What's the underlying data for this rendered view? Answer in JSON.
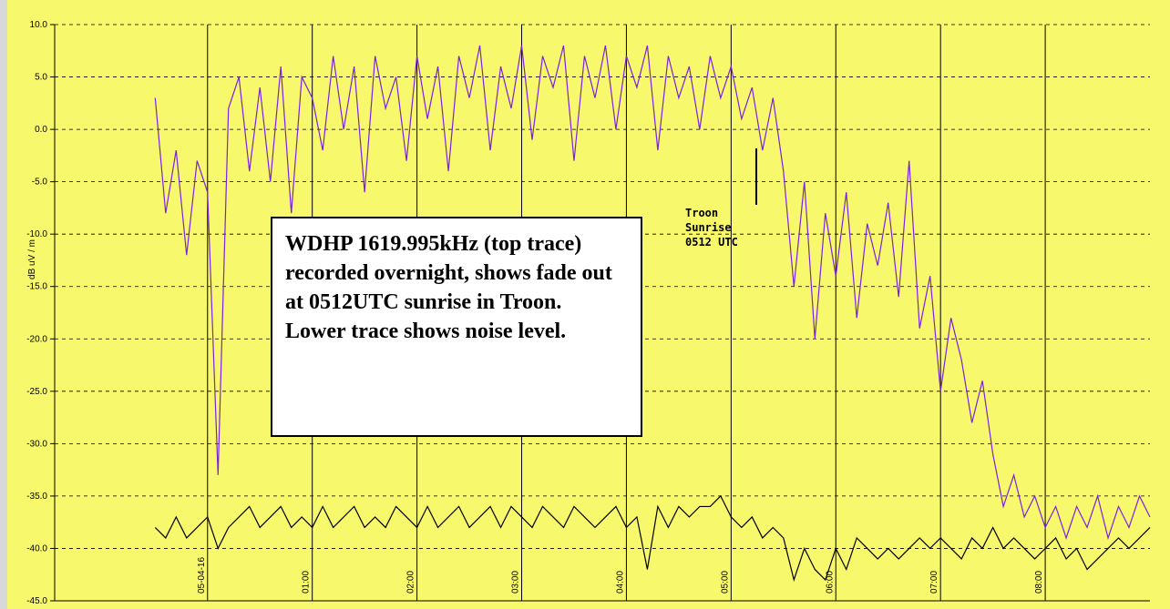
{
  "chart_data": {
    "type": "line",
    "ylabel": "dB uV / m",
    "annotations": [
      "WDHP 1619.995kHz (top trace) recorded overnight, shows fade out at 0512UTC sunrise in Troon. Lower trace shows noise level.",
      "Troon Sunrise 0512 UTC"
    ],
    "x": [
      -0.5,
      -0.4,
      -0.3,
      -0.2,
      -0.1,
      0,
      0.1,
      0.2,
      0.3,
      0.4,
      0.5,
      0.6,
      0.7,
      0.8,
      0.9,
      1.0,
      1.1,
      1.2,
      1.3,
      1.4,
      1.5,
      1.6,
      1.7,
      1.8,
      1.9,
      2.0,
      2.1,
      2.2,
      2.3,
      2.4,
      2.5,
      2.6,
      2.7,
      2.8,
      2.9,
      3.0,
      3.1,
      3.2,
      3.3,
      3.4,
      3.5,
      3.6,
      3.7,
      3.8,
      3.9,
      4.0,
      4.1,
      4.2,
      4.3,
      4.4,
      4.5,
      4.6,
      4.7,
      4.8,
      4.9,
      5.0,
      5.1,
      5.2,
      5.3,
      5.4,
      5.5,
      5.6,
      5.7,
      5.8,
      5.9,
      6.0,
      6.1,
      6.2,
      6.3,
      6.4,
      6.5,
      6.6,
      6.7,
      6.8,
      6.9,
      7.0,
      7.1,
      7.2,
      7.3,
      7.4,
      7.5,
      7.6,
      7.7,
      7.8,
      7.9,
      8.0,
      8.1,
      8.2,
      8.3,
      8.4,
      8.5,
      8.6,
      8.7,
      8.8,
      8.9,
      9.0
    ],
    "series": [
      {
        "color": "#7a22e0",
        "values": [
          3,
          -8,
          -2,
          -12,
          -3,
          -6,
          -33,
          2,
          5,
          -4,
          4,
          -5,
          6,
          -8,
          5,
          3,
          -2,
          7,
          0,
          6,
          -6,
          7,
          2,
          5,
          -3,
          7,
          1,
          6,
          -4,
          7,
          3,
          8,
          -2,
          6,
          2,
          8,
          -1,
          7,
          4,
          8,
          -3,
          7,
          3,
          8,
          0,
          7,
          4,
          8,
          -2,
          7,
          3,
          6,
          0,
          7,
          3,
          6,
          1,
          4,
          -2,
          3,
          -4,
          -15,
          -5,
          -20,
          -8,
          -14,
          -6,
          -18,
          -9,
          -13,
          -7,
          -16,
          -3,
          -19,
          -14,
          -25,
          -18,
          -22,
          -28,
          -24,
          -31,
          -36,
          -33,
          -37,
          -35,
          -38,
          -36,
          -39,
          -36,
          -38,
          -35,
          -39,
          -36,
          -38,
          -35,
          -37
        ]
      },
      {
        "color": "#000000",
        "values": [
          -38,
          -39,
          -37,
          -39,
          -38,
          -37,
          -40,
          -38,
          -37,
          -36,
          -38,
          -37,
          -36,
          -38,
          -37,
          -38,
          -36,
          -38,
          -37,
          -36,
          -38,
          -37,
          -38,
          -36,
          -37,
          -38,
          -36,
          -38,
          -37,
          -36,
          -38,
          -37,
          -36,
          -38,
          -36,
          -37,
          -38,
          -36,
          -37,
          -38,
          -36,
          -37,
          -38,
          -37,
          -36,
          -38,
          -37,
          -42,
          -36,
          -38,
          -36,
          -37,
          -36,
          -36,
          -35,
          -37,
          -38,
          -37,
          -39,
          -38,
          -39,
          -43,
          -40,
          -42,
          -43,
          -40,
          -42,
          -39,
          -40,
          -41,
          -40,
          -41,
          -40,
          -39,
          -40,
          -39,
          -40,
          -41,
          -39,
          -40,
          -38,
          -40,
          -39,
          -40,
          -41,
          -40,
          -39,
          -41,
          -40,
          -42,
          -41,
          -40,
          -39,
          -40,
          -39,
          -38
        ]
      }
    ],
    "xlim": [
      -1.46,
      9.0
    ],
    "xticks": [
      {
        "value": 0,
        "label": "05-04-16"
      },
      {
        "value": 1,
        "label": "01:00"
      },
      {
        "value": 2,
        "label": "02:00"
      },
      {
        "value": 3,
        "label": "03:00"
      },
      {
        "value": 4,
        "label": "04:00"
      },
      {
        "value": 5,
        "label": "05:00"
      },
      {
        "value": 6,
        "label": "06:00"
      },
      {
        "value": 7,
        "label": "07:00"
      },
      {
        "value": 8,
        "label": "08:00"
      }
    ],
    "ylim": [
      -45,
      10
    ],
    "yticks": [
      {
        "value": 10,
        "label": "10.0"
      },
      {
        "value": 5,
        "label": "5.0"
      },
      {
        "value": 0,
        "label": "0.0"
      },
      {
        "value": -5,
        "label": "-5.0"
      },
      {
        "value": -10,
        "label": "-10.0"
      },
      {
        "value": -15,
        "label": "-15.0"
      },
      {
        "value": -20,
        "label": "-20.0"
      },
      {
        "value": -25,
        "label": "-25.0"
      },
      {
        "value": -30,
        "label": "-30.0"
      },
      {
        "value": -35,
        "label": "-35.0"
      },
      {
        "value": -40,
        "label": "-40.0"
      },
      {
        "value": -45,
        "label": "-45.0"
      }
    ],
    "grid": true
  }
}
